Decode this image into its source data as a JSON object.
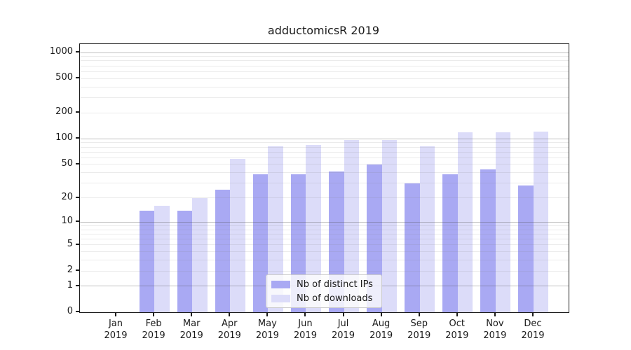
{
  "chart_data": {
    "type": "bar",
    "title": "adductomicsR 2019",
    "categories": [
      "Jan 2019",
      "Feb 2019",
      "Mar 2019",
      "Apr 2019",
      "May 2019",
      "Jun 2019",
      "Jul 2019",
      "Aug 2019",
      "Sep 2019",
      "Oct 2019",
      "Nov 2019",
      "Dec 2019"
    ],
    "series": [
      {
        "name": "Nb of distinct IPs",
        "color": "#a9a9f3",
        "values": [
          0,
          14,
          14,
          25,
          38,
          38,
          41,
          50,
          30,
          38,
          44,
          28
        ]
      },
      {
        "name": "Nb of downloads",
        "color": "#dcdcf9",
        "values": [
          0,
          16,
          20,
          58,
          82,
          84,
          97,
          96,
          82,
          118,
          118,
          121
        ]
      }
    ],
    "xlabel": "",
    "ylabel": "",
    "y_scale": "log1p",
    "ylim": [
      0,
      1000
    ],
    "yticks": [
      0,
      1,
      2,
      5,
      10,
      20,
      50,
      100,
      200,
      500,
      1000
    ],
    "grid": "horizontal major (1,10,100,1000) + faint log minor lines",
    "legend_position": "bottom-center-inside",
    "colors": {
      "major_grid": "#b5b5b5",
      "minor_grid": "#e7e7e7",
      "axis": "#1c1c1c",
      "text": "#1a1a1a",
      "background": "#ffffff"
    }
  }
}
